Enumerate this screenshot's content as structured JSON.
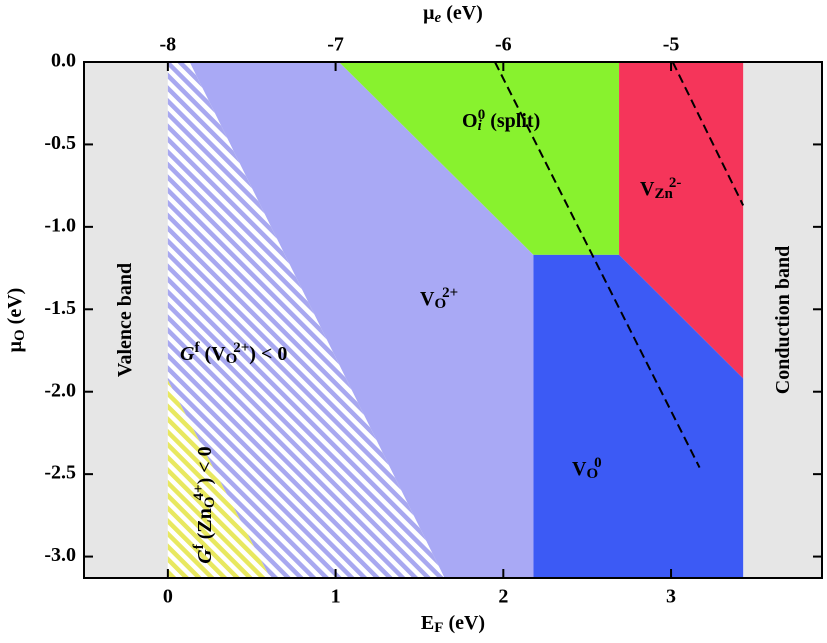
{
  "chart_data": {
    "type": "region",
    "x_label": [
      {
        "t": "E"
      },
      {
        "sub": "F"
      },
      {
        "t": " (eV)"
      }
    ],
    "x2_label": [
      {
        "t": "μ"
      },
      {
        "subit": "e"
      },
      {
        "t": " (eV)"
      }
    ],
    "y_label": [
      {
        "t": "μ"
      },
      {
        "sub": "O"
      },
      {
        "t": " (eV)"
      }
    ],
    "xlim": [
      -0.5,
      3.9
    ],
    "xticks": [
      0,
      1,
      2,
      3
    ],
    "x2lim": [
      -8.5,
      -4.1
    ],
    "x2ticks": [
      -8,
      -7,
      -6,
      -5
    ],
    "ylim": [
      -3.13,
      0
    ],
    "yticks": [
      {
        "value": 0,
        "label": "0.0"
      },
      -0.5,
      {
        "value": -1,
        "label": "-1.0"
      },
      -1.5,
      {
        "value": -2,
        "label": "-2.0"
      },
      -2.5,
      {
        "value": -3,
        "label": "-3.0"
      }
    ],
    "regions": [
      {
        "label": [
          {
            "t": "Valence band"
          }
        ],
        "color": "#e6e6e6",
        "x": [
          -0.5,
          0,
          0,
          -0.5
        ],
        "y": [
          0,
          0,
          -3.13,
          -3.13
        ]
      },
      {
        "label": [
          {
            "t": "Conduction band"
          }
        ],
        "color": "#e6e6e6",
        "x": [
          3.43,
          3.9,
          3.9,
          3.43
        ],
        "y": [
          0,
          0,
          -3.13,
          -3.13
        ]
      },
      {
        "label": [
          {
            "it": "G"
          },
          {
            "sup": "f"
          },
          {
            "t": " (V"
          },
          {
            "sub": "O"
          },
          {
            "sup": "2+"
          },
          {
            "t": ") < 0"
          }
        ],
        "color": "#a8a8f0",
        "hatch": true,
        "x": [
          0,
          0.13,
          1.65,
          0.61,
          0
        ],
        "y": [
          0,
          0,
          -3.13,
          -3.13,
          -1.93
        ]
      },
      {
        "label": [
          {
            "it": "G"
          },
          {
            "sup": "f"
          },
          {
            "t": " (Zn"
          },
          {
            "sub": "O"
          },
          {
            "sup": "4+"
          },
          {
            "t": ") < 0"
          }
        ],
        "color": "#e8e860",
        "hatch": true,
        "x": [
          0,
          0.61,
          0
        ],
        "y": [
          -1.93,
          -3.13,
          -3.13
        ]
      },
      {
        "label": [
          {
            "t": "V"
          },
          {
            "sub": "O"
          },
          {
            "sup": "2+"
          }
        ],
        "color": "#a9a9f5",
        "x": [
          0.13,
          1.02,
          2.18,
          2.18,
          1.65
        ],
        "y": [
          0,
          0,
          -1.17,
          -3.13,
          -3.13
        ]
      },
      {
        "label": [
          {
            "t": "O"
          },
          {
            "subit": "i"
          },
          {
            "sup": "0"
          },
          {
            "t": " (split)"
          }
        ],
        "color": "#88f22e",
        "x": [
          1.02,
          2.69,
          2.69,
          2.18
        ],
        "y": [
          0,
          0,
          -1.17,
          -1.17
        ]
      },
      {
        "label": [
          {
            "t": "V"
          },
          {
            "sub": "Zn"
          },
          {
            "sup": "2-"
          }
        ],
        "color": "#f5355a",
        "x": [
          2.69,
          3.43,
          3.43,
          2.69
        ],
        "y": [
          0,
          0,
          -1.92,
          -1.17
        ]
      },
      {
        "label": [
          {
            "t": "V"
          },
          {
            "sub": "O"
          },
          {
            "sup": "0"
          }
        ],
        "color": "#3c5af5",
        "x": [
          2.18,
          2.69,
          3.43,
          3.43,
          2.18
        ],
        "y": [
          -1.17,
          -1.17,
          -1.92,
          -3.13,
          -3.13
        ]
      }
    ],
    "lines": [
      {
        "color": "#000000",
        "dashed": true,
        "x": [
          1.95,
          3.17
        ],
        "y": [
          0,
          -2.46
        ]
      },
      {
        "color": "#000000",
        "dashed": true,
        "x": [
          3.01,
          3.43
        ],
        "y": [
          0,
          -0.87
        ]
      }
    ]
  }
}
